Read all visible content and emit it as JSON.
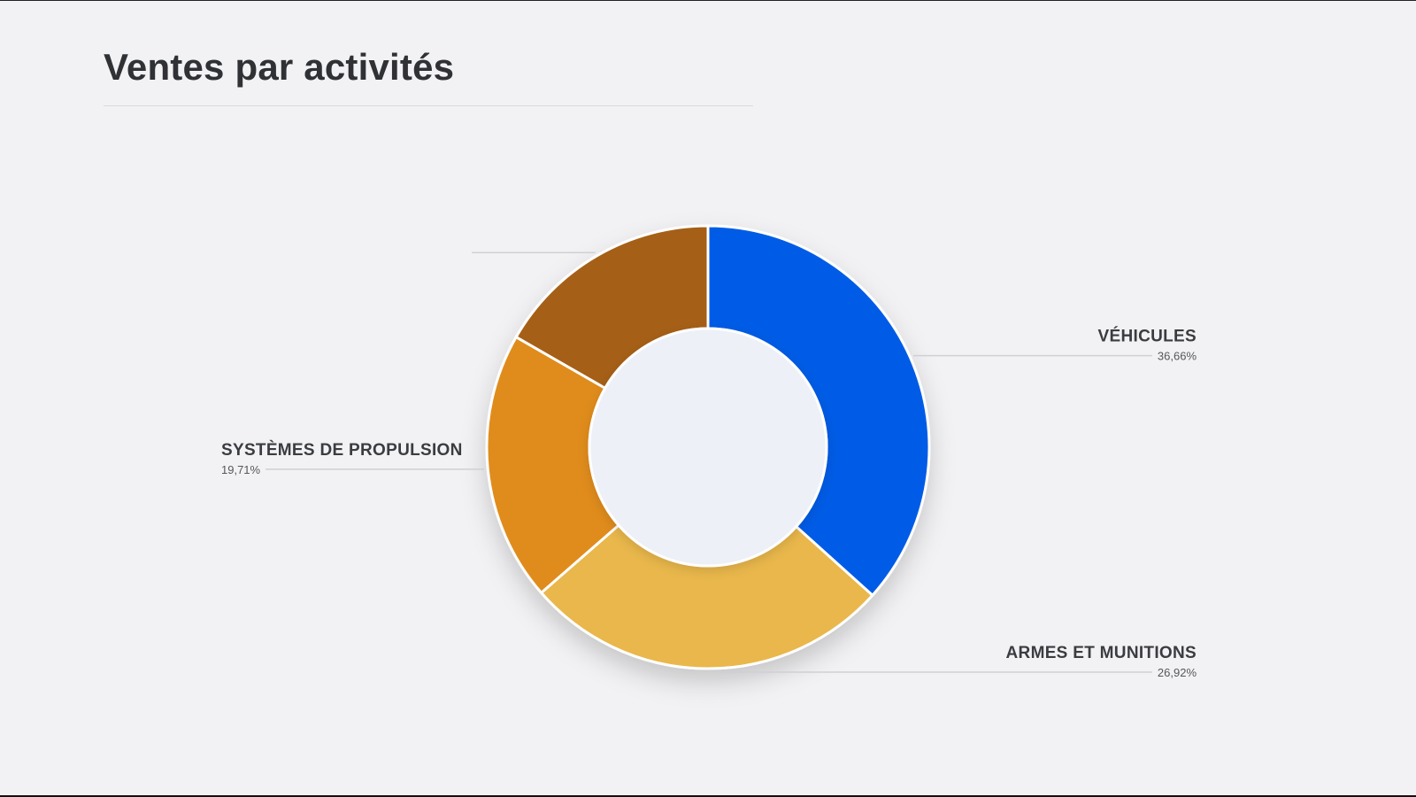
{
  "title": "Ventes par activités",
  "chart_data": {
    "type": "pie",
    "donut": true,
    "title": "Ventes par activités",
    "slices": [
      {
        "label": "VÉHICULES",
        "value": 36.66,
        "value_text": "36,66%",
        "color": "#045be6",
        "label_side": "right"
      },
      {
        "label": "ARMES ET MUNITIONS",
        "value": 26.92,
        "value_text": "26,92%",
        "color": "#e9b74c",
        "label_side": "right"
      },
      {
        "label": "SYSTÈMES DE PROPULSION",
        "value": 19.71,
        "value_text": "19,71%",
        "color": "#e08c1f",
        "label_side": "left"
      },
      {
        "label": "",
        "value": 16.71,
        "value_text": "",
        "color": "#a65f17",
        "label_side": "left"
      }
    ],
    "center_color": "#eef0f7",
    "legend": "none"
  }
}
